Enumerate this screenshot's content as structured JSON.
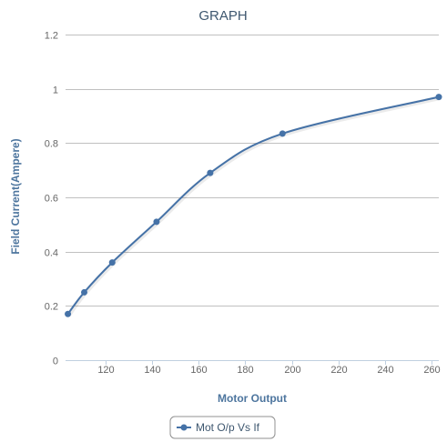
{
  "chart_data": {
    "type": "line",
    "title": "GRAPH",
    "xlabel": "Motor Output",
    "ylabel": "Field Current(Ampere)",
    "xlim": [
      103,
      263
    ],
    "ylim": [
      0,
      1.2
    ],
    "x_ticks": [
      120,
      140,
      160,
      180,
      200,
      220,
      240,
      260
    ],
    "y_ticks": [
      0,
      0.2,
      0.4,
      0.6,
      0.8,
      1,
      1.2
    ],
    "grid": true,
    "legend": "bottom-center",
    "series": [
      {
        "name": "Mot O/p Vs If",
        "color": "#4572a7",
        "x": [
          104,
          111,
          123,
          142,
          165,
          196,
          263
        ],
        "y": [
          0.17,
          0.25,
          0.36,
          0.51,
          0.69,
          0.835,
          0.97
        ]
      }
    ]
  }
}
